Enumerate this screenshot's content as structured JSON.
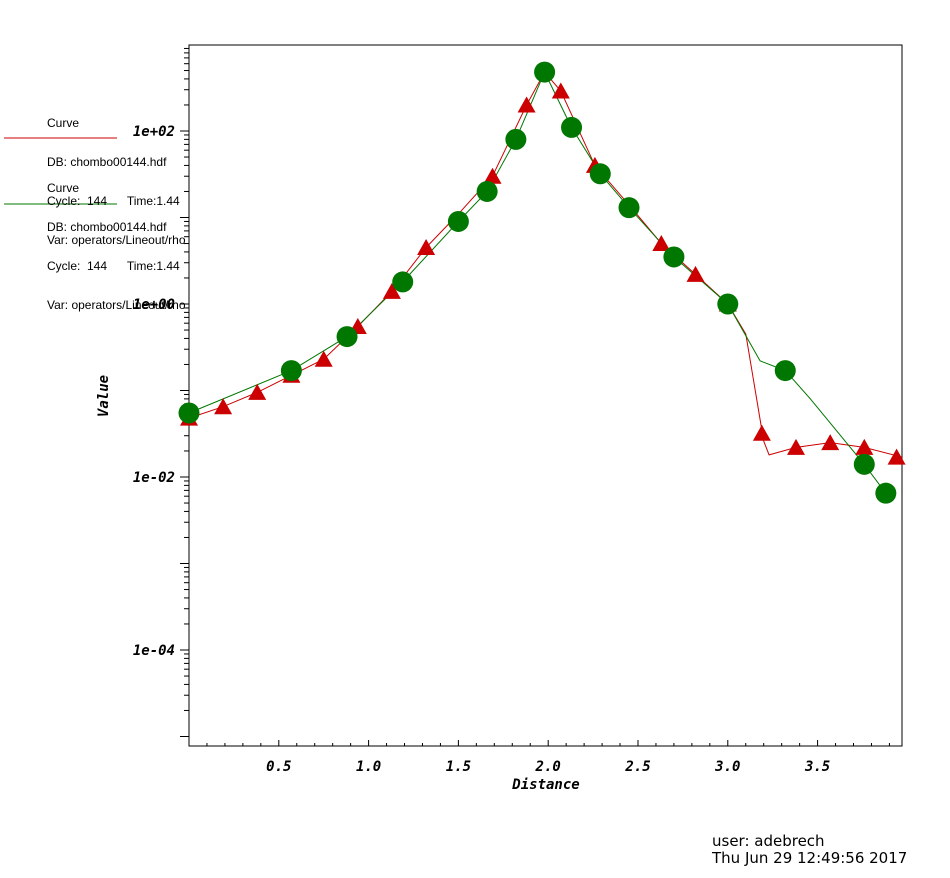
{
  "legend": [
    {
      "title": "Curve",
      "db": "DB: chombo00144.hdf",
      "cycle": "Cycle:  144      Time:1.44",
      "var": "Var: operators/Lineout/rho",
      "color": "#cc0000"
    },
    {
      "title": "Curve",
      "db": "DB: chombo00144.hdf",
      "cycle": "Cycle:  144      Time:1.44",
      "var": "Var: operators/Lineout/rho",
      "color": "#007700"
    }
  ],
  "footer": {
    "user": "user: adebrech",
    "date": "Thu Jun 29 12:49:56 2017"
  },
  "chart_data": {
    "type": "line",
    "xlabel": "Distance",
    "ylabel": "Value",
    "xlim": [
      0,
      3.97
    ],
    "ylim": [
      2e-05,
      700
    ],
    "yscale": "log",
    "xticks": [
      "0.5",
      "1.0",
      "1.5",
      "2.0",
      "2.5",
      "3.0",
      "3.5"
    ],
    "yticks": [
      "1e+02",
      "1e+00",
      "1e-02",
      "1e-04"
    ],
    "grid": false,
    "legend_position": "top-left",
    "series": [
      {
        "color": "#cc0000",
        "marker": "triangle",
        "line_x": [
          0,
          0.19,
          0.38,
          0.57,
          0.75,
          0.94,
          1.13,
          1.32,
          1.5,
          1.69,
          1.88,
          1.98,
          2.07,
          2.26,
          2.45,
          2.63,
          2.82,
          3.0,
          3.1,
          3.2,
          3.23,
          3.38,
          3.57,
          3.76,
          3.97
        ],
        "line_y": [
          0.048,
          0.065,
          0.095,
          0.15,
          0.23,
          0.55,
          1.4,
          4.5,
          11,
          30,
          200,
          480,
          290,
          40,
          14,
          5,
          2.2,
          1.0,
          0.45,
          0.026,
          0.018,
          0.022,
          0.025,
          0.022,
          0.017
        ],
        "marker_x": [
          0,
          0.19,
          0.38,
          0.57,
          0.75,
          0.94,
          1.13,
          1.32,
          1.69,
          1.88,
          2.07,
          2.26,
          2.63,
          2.82,
          3.0,
          3.19,
          3.38,
          3.57,
          3.76,
          3.94
        ],
        "marker_y": [
          0.048,
          0.065,
          0.095,
          0.15,
          0.23,
          0.55,
          1.4,
          4.5,
          30,
          200,
          290,
          40,
          5,
          2.2,
          1.0,
          0.032,
          0.022,
          0.025,
          0.022,
          0.017
        ]
      },
      {
        "color": "#007700",
        "marker": "circle",
        "line_x": [
          0,
          0.57,
          0.88,
          1.19,
          1.5,
          1.66,
          1.82,
          1.98,
          2.13,
          2.29,
          2.45,
          2.7,
          3.0,
          3.18,
          3.32,
          3.46,
          3.76,
          3.88
        ],
        "line_y": [
          0.055,
          0.17,
          0.42,
          1.8,
          9,
          20,
          80,
          480,
          110,
          32,
          13,
          3.5,
          1.0,
          0.22,
          0.17,
          0.08,
          0.014,
          0.0065
        ],
        "marker_x": [
          0,
          0.57,
          0.88,
          1.19,
          1.5,
          1.66,
          1.82,
          1.98,
          2.13,
          2.29,
          2.45,
          2.7,
          3.0,
          3.32,
          3.76,
          3.88
        ],
        "marker_y": [
          0.055,
          0.17,
          0.42,
          1.8,
          9,
          20,
          80,
          480,
          110,
          32,
          13,
          3.5,
          1.0,
          0.17,
          0.014,
          0.0065
        ]
      }
    ]
  }
}
